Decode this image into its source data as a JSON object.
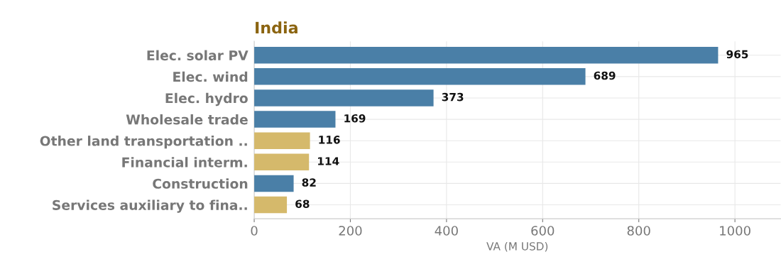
{
  "chart_data": {
    "type": "bar",
    "orientation": "horizontal",
    "title": "India",
    "xlabel": "VA (M USD)",
    "categories": [
      "Elec. solar PV",
      "Elec. wind",
      "Elec. hydro",
      "Wholesale trade",
      "Other land transportation ..",
      "Financial interm.",
      "Construction",
      "Services auxiliary to fina.."
    ],
    "values": [
      965,
      689,
      373,
      169,
      116,
      114,
      82,
      68
    ],
    "colors": [
      "#4a7fa7",
      "#4a7fa7",
      "#4a7fa7",
      "#4a7fa7",
      "#d5b96b",
      "#d5b96b",
      "#4a7fa7",
      "#d5b96b"
    ],
    "xlim": [
      0,
      1095
    ],
    "xticks": [
      0,
      200,
      400,
      600,
      800,
      1000
    ],
    "grid": true,
    "data_labels": true
  }
}
